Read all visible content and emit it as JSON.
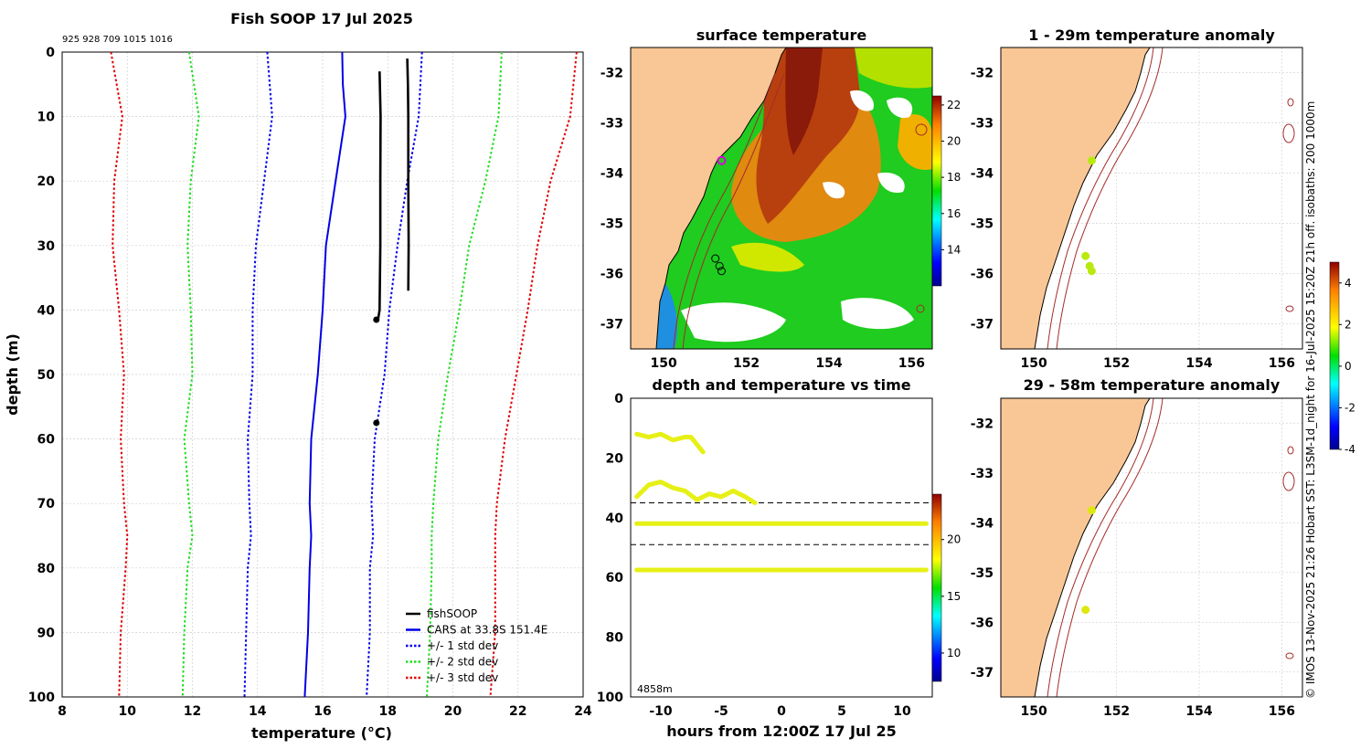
{
  "colors": {
    "land": "#f9c795",
    "fishsoop": "#000000",
    "cars": "#0000e6",
    "sd1": "#0000e6",
    "sd2": "#22dd22",
    "sd3": "#e00000",
    "coast": "#000000",
    "isobath": "#a52a2a",
    "yellow": "#e6f016",
    "dashed": "#000000"
  },
  "icons": {
    "legend": "line-swatch",
    "markers": "circle"
  },
  "profile": {
    "title": "Fish SOOP 17 Jul 2025",
    "ids": "925 928 709 1015 1016",
    "xlabel": "temperature (°C)",
    "ylabel": "depth (m)"
  },
  "surface": {
    "title": "surface temperature"
  },
  "timeseries": {
    "title": "depth and temperature vs time",
    "xlabel": "hours from 12:00Z 17 Jul 25",
    "corner_label": "4858m"
  },
  "anomaly1": {
    "title": "1 - 29m temperature anomaly"
  },
  "anomaly2": {
    "title": "29 - 58m temperature anomaly"
  },
  "side_note": "© IMOS 13-Nov-2025 21:26 Hobart SST: L3SM-1d_night for 16-Jul-2025 15:20Z 21h off. isobaths: 200  1000m",
  "chart_data": [
    {
      "type": "line",
      "title": "Fish SOOP 17 Jul 2025",
      "xlabel": "temperature (°C)",
      "ylabel": "depth (m)",
      "xlim": [
        8,
        24
      ],
      "ylim": [
        100,
        0
      ],
      "xticks": [
        8,
        10,
        12,
        14,
        16,
        18,
        20,
        22,
        24
      ],
      "yticks": [
        0,
        10,
        20,
        30,
        40,
        50,
        60,
        70,
        80,
        90,
        100
      ],
      "grid": true,
      "legend_position": "bottom-right",
      "series": [
        {
          "name": "CARS at 33.8S 151.4E",
          "style": "solid",
          "color": "cars",
          "depth": [
            0,
            5,
            10,
            20,
            30,
            40,
            50,
            60,
            70,
            75,
            80,
            90,
            100
          ],
          "temp": [
            16.6,
            16.62,
            16.7,
            16.4,
            16.1,
            16.0,
            15.85,
            15.65,
            15.6,
            15.65,
            15.6,
            15.55,
            15.45
          ]
        },
        {
          "name": "+/- 1 std dev",
          "style": "dotted",
          "color": "sd1",
          "depth": [
            0,
            10,
            20,
            30,
            40,
            50,
            60,
            70,
            75,
            80,
            90,
            100
          ],
          "temp": [
            14.3,
            14.45,
            14.2,
            13.95,
            13.85,
            13.85,
            13.7,
            13.75,
            13.8,
            13.7,
            13.65,
            13.6
          ],
          "temp2": [
            19.05,
            18.95,
            18.6,
            18.3,
            18.05,
            17.9,
            17.6,
            17.5,
            17.55,
            17.45,
            17.45,
            17.35
          ]
        },
        {
          "name": "+/- 2 std dev",
          "style": "dotted",
          "color": "sd2",
          "depth": [
            0,
            10,
            20,
            30,
            40,
            50,
            60,
            70,
            75,
            80,
            90,
            100
          ],
          "temp": [
            11.9,
            12.2,
            11.95,
            11.85,
            11.95,
            12.0,
            11.75,
            11.9,
            12.0,
            11.85,
            11.75,
            11.7
          ],
          "temp2": [
            21.5,
            21.4,
            21.0,
            20.5,
            20.2,
            19.85,
            19.55,
            19.4,
            19.35,
            19.35,
            19.3,
            19.2
          ]
        },
        {
          "name": "+/- 3 std dev",
          "style": "dotted",
          "color": "sd3",
          "depth": [
            0,
            10,
            20,
            30,
            40,
            50,
            60,
            70,
            75,
            80,
            90,
            100
          ],
          "temp": [
            9.5,
            9.85,
            9.6,
            9.55,
            9.75,
            9.9,
            9.8,
            9.9,
            10.0,
            9.95,
            9.8,
            9.75
          ],
          "temp2": [
            23.8,
            23.6,
            23.0,
            22.6,
            22.3,
            21.95,
            21.6,
            21.35,
            21.3,
            21.3,
            21.3,
            21.15
          ]
        },
        {
          "name": "fishSOOP",
          "style": "solid",
          "color": "fishsoop",
          "profiles": [
            {
              "depth": [
                3,
                10,
                20,
                30,
                40,
                41.5
              ],
              "temp": [
                17.75,
                17.78,
                17.77,
                17.77,
                17.75,
                17.7
              ]
            },
            {
              "depth": [
                1,
                5,
                10,
                20,
                30,
                37
              ],
              "temp": [
                18.6,
                18.62,
                18.63,
                18.63,
                18.64,
                18.63
              ]
            }
          ],
          "points": [
            {
              "depth": 41.5,
              "temp": 17.65
            },
            {
              "depth": 57.5,
              "temp": 17.65
            }
          ]
        }
      ]
    },
    {
      "type": "heatmap",
      "title": "surface temperature",
      "xlim": [
        149.2,
        156.5
      ],
      "ylim": [
        -37.5,
        -31.5
      ],
      "xticks": [
        150,
        152,
        154,
        156
      ],
      "yticks": [
        -32,
        -33,
        -34,
        -35,
        -36,
        -37
      ],
      "colorbar": {
        "min": 12,
        "max": 22.5,
        "ticks": [
          14,
          16,
          18,
          20,
          22
        ]
      },
      "stations": [
        {
          "lon": 151.4,
          "lat": -33.75,
          "style": "magenta-ring"
        },
        {
          "lon": 151.25,
          "lat": -35.7
        },
        {
          "lon": 151.35,
          "lat": -35.85
        },
        {
          "lon": 151.4,
          "lat": -35.95
        }
      ]
    },
    {
      "type": "scatter",
      "title": "depth and temperature vs time",
      "xlabel": "hours from 12:00Z 17 Jul 25",
      "xlim": [
        -12.5,
        12.5
      ],
      "ylim": [
        100,
        0
      ],
      "xticks": [
        -10,
        -5,
        0,
        5,
        10
      ],
      "yticks": [
        0,
        20,
        40,
        60,
        80,
        100
      ],
      "colorbar": {
        "min": 7.5,
        "max": 24,
        "ticks": [
          10,
          15,
          20
        ]
      },
      "dashed_lines_depth": [
        35,
        49
      ],
      "tracks": [
        {
          "x": [
            -12,
            12
          ],
          "depth": [
            42,
            42
          ]
        },
        {
          "x": [
            -12,
            12
          ],
          "depth": [
            57.5,
            57.5
          ]
        },
        {
          "x": [
            -12,
            -11,
            -10,
            -9,
            -8,
            -7.5,
            -6.5
          ],
          "depth": [
            12,
            13,
            12,
            14,
            13,
            13,
            18
          ]
        },
        {
          "x": [
            -12,
            -11,
            -10,
            -9,
            -8,
            -7,
            -6,
            -5,
            -4,
            -3,
            -2.2
          ],
          "depth": [
            33,
            29,
            28,
            30,
            31,
            34,
            32,
            33,
            31,
            33,
            35
          ]
        }
      ]
    },
    {
      "type": "scatter",
      "title": "1 - 29m temperature anomaly",
      "xlim": [
        149.2,
        156.5
      ],
      "ylim": [
        -37.5,
        -31.5
      ],
      "xticks": [
        150,
        152,
        154,
        156
      ],
      "yticks": [
        -32,
        -33,
        -34,
        -35,
        -36,
        -37
      ],
      "colorbar": {
        "min": -4,
        "max": 5,
        "ticks": [
          -4,
          -2,
          0,
          2,
          4
        ]
      },
      "points": [
        {
          "lon": 151.4,
          "lat": -33.75
        },
        {
          "lon": 151.25,
          "lat": -35.65
        },
        {
          "lon": 151.35,
          "lat": -35.85
        },
        {
          "lon": 151.4,
          "lat": -35.95
        }
      ]
    },
    {
      "type": "scatter",
      "title": "29 - 58m temperature anomaly",
      "xlim": [
        149.2,
        156.5
      ],
      "ylim": [
        -37.5,
        -31.5
      ],
      "xticks": [
        150,
        152,
        154,
        156
      ],
      "yticks": [
        -32,
        -33,
        -34,
        -35,
        -36,
        -37
      ],
      "points": [
        {
          "lon": 151.4,
          "lat": -33.75
        },
        {
          "lon": 151.25,
          "lat": -35.75
        }
      ]
    }
  ]
}
